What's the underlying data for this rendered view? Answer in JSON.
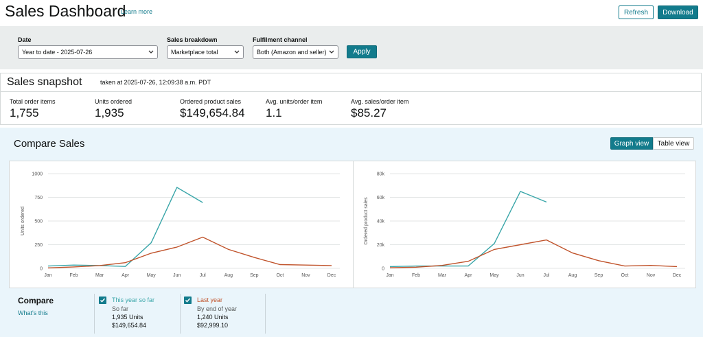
{
  "header": {
    "title": "Sales Dashboard",
    "learn_more": "Learn more",
    "buttons": [
      "Refresh",
      "Download"
    ]
  },
  "filters": {
    "fields": [
      {
        "label": "Date",
        "value": "Year to date - 2025-07-26"
      },
      {
        "label": "Sales breakdown",
        "value": "Marketplace total"
      },
      {
        "label": "Fulfilment channel",
        "value": "Both (Amazon and seller)"
      }
    ],
    "apply": "Apply"
  },
  "snapshot": {
    "title": "Sales snapshot",
    "timestamp": "taken at 2025-07-26, 12:09:38 a.m. PDT",
    "metrics": [
      {
        "label": "Total order items",
        "value": "1,755"
      },
      {
        "label": "Units ordered",
        "value": "1,935"
      },
      {
        "label": "Ordered product sales",
        "value": "$149,654.84"
      },
      {
        "label": "Avg. units/order item",
        "value": "1.1"
      },
      {
        "label": "Avg. sales/order item",
        "value": "$85.27"
      }
    ]
  },
  "compare": {
    "title": "Compare Sales",
    "views": [
      "Graph view",
      "Table view"
    ],
    "legend_title": "Compare",
    "whats_this": "What's this",
    "items": [
      {
        "name": "This year so far",
        "period": "So far",
        "units": "1,935 Units",
        "sales": "$149,654.84"
      },
      {
        "name": "Last year",
        "period": "By end of year",
        "units": "1,240 Units",
        "sales": "$92,999.10"
      }
    ]
  },
  "chart_data": [
    {
      "type": "line",
      "y_label": "Units ordered",
      "categories": [
        "Jan",
        "Feb",
        "Mar",
        "Apr",
        "May",
        "Jun",
        "Jul",
        "Aug",
        "Sep",
        "Oct",
        "Nov",
        "Dec"
      ],
      "series": [
        {
          "color": "#3aa6a9",
          "values": [
            25,
            35,
            30,
            20,
            270,
            855,
            695,
            null,
            null,
            null,
            null,
            null
          ]
        },
        {
          "color": "#c0532b",
          "values": [
            5,
            15,
            30,
            60,
            160,
            225,
            330,
            200,
            115,
            40,
            35,
            30
          ]
        }
      ],
      "ylim": [
        0,
        1000
      ],
      "yticks": [
        0,
        250,
        500,
        750,
        1000
      ],
      "grid": true
    },
    {
      "type": "line",
      "y_label": "Ordered product sales",
      "categories": [
        "Jan",
        "Feb",
        "Mar",
        "Apr",
        "May",
        "Jun",
        "Jul",
        "Aug",
        "Sep",
        "Oct",
        "Nov",
        "Dec"
      ],
      "series": [
        {
          "color": "#3aa6a9",
          "values": [
            1500,
            2000,
            2000,
            2000,
            21000,
            65000,
            56000,
            null,
            null,
            null,
            null,
            null
          ]
        },
        {
          "color": "#c0532b",
          "values": [
            500,
            1000,
            2500,
            6000,
            16000,
            20000,
            24000,
            13000,
            6500,
            2000,
            2500,
            1500
          ]
        }
      ],
      "ylim": [
        0,
        80000
      ],
      "yticks": [
        0,
        {
          "value": 20000,
          "label": "20k"
        },
        {
          "value": 40000,
          "label": "40k"
        },
        {
          "value": 60000,
          "label": "60k"
        },
        {
          "value": 80000,
          "label": "80k"
        }
      ],
      "grid": true
    }
  ]
}
